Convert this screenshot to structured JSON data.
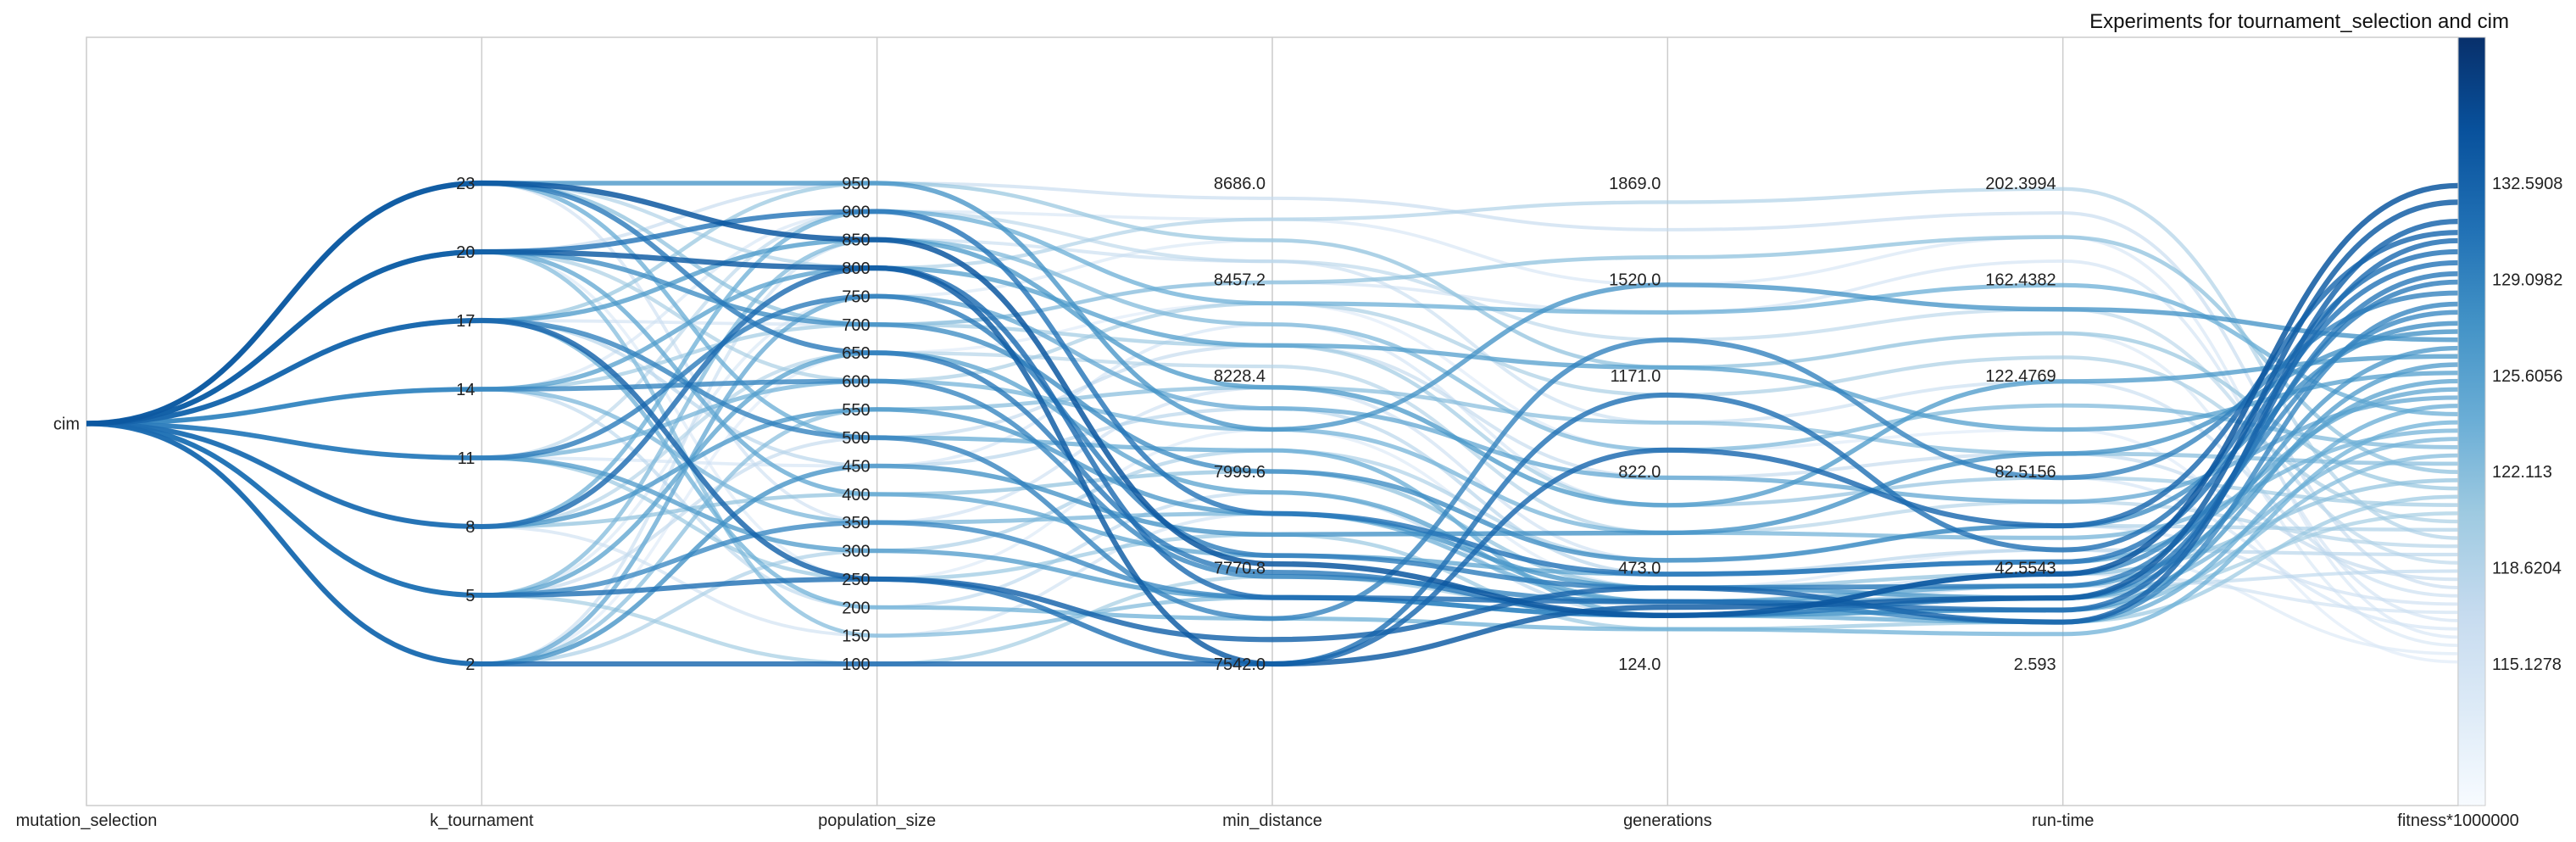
{
  "chart_data": {
    "type": "parallel-coordinates",
    "title": "Experiments for tournament_selection and cim",
    "line_style": "smooth curves",
    "grid": true,
    "colormap": "Blues",
    "colorbar_range": [
      111.6352,
      136.0834
    ],
    "axes": [
      {
        "name": "mutation_selection",
        "categorical": true,
        "ticks": [
          "cim"
        ]
      },
      {
        "name": "k_tournament",
        "range": [
          2,
          23
        ],
        "ticks": [
          "2",
          "5",
          "8",
          "11",
          "14",
          "17",
          "20",
          "23"
        ]
      },
      {
        "name": "population_size",
        "range": [
          100,
          950
        ],
        "ticks": [
          "100",
          "150",
          "200",
          "250",
          "300",
          "350",
          "400",
          "450",
          "500",
          "550",
          "600",
          "650",
          "700",
          "750",
          "800",
          "850",
          "900",
          "950"
        ]
      },
      {
        "name": "min_distance",
        "range": [
          7542.0,
          8686.0
        ],
        "ticks": [
          "7542.0",
          "7770.8",
          "7999.6",
          "8228.4",
          "8457.2",
          "8686.0"
        ]
      },
      {
        "name": "generations",
        "range": [
          124.0,
          1869.0
        ],
        "ticks": [
          "124.0",
          "473.0",
          "822.0",
          "1171.0",
          "1520.0",
          "1869.0"
        ]
      },
      {
        "name": "run-time",
        "range": [
          2.593,
          202.3994
        ],
        "ticks": [
          "2.593",
          "42.5543",
          "82.5156",
          "122.4769",
          "162.4382",
          "202.3994"
        ]
      },
      {
        "name": "fitness*1000000",
        "range": [
          115.1278,
          132.5908
        ],
        "ticks": [
          "115.1278",
          "118.6204",
          "122.113",
          "125.6056",
          "129.0982",
          "132.5908"
        ]
      }
    ],
    "series": [
      {
        "values": [
          "cim",
          23,
          850,
          7780,
          300,
          40,
          132.5
        ]
      },
      {
        "values": [
          "cim",
          20,
          800,
          7542,
          330,
          30,
          131.9
        ]
      },
      {
        "values": [
          "cim",
          17,
          250,
          7600,
          400,
          20,
          131.2
        ]
      },
      {
        "values": [
          "cim",
          2,
          100,
          7542,
          900,
          60,
          130.8
        ]
      },
      {
        "values": [
          "cim",
          8,
          800,
          7700,
          350,
          25,
          130.5
        ]
      },
      {
        "values": [
          "cim",
          5,
          250,
          7542,
          1100,
          50,
          130.1
        ]
      },
      {
        "values": [
          "cim",
          20,
          900,
          7900,
          450,
          45,
          129.7
        ]
      },
      {
        "values": [
          "cim",
          23,
          650,
          7760,
          300,
          30,
          129.3
        ]
      },
      {
        "values": [
          "cim",
          11,
          750,
          7800,
          400,
          35,
          129.0
        ]
      },
      {
        "values": [
          "cim",
          17,
          500,
          7650,
          1300,
          80,
          128.6
        ]
      },
      {
        "values": [
          "cim",
          14,
          600,
          7750,
          350,
          20,
          128.2
        ]
      },
      {
        "values": [
          "cim",
          5,
          350,
          7700,
          300,
          40,
          127.9
        ]
      },
      {
        "values": [
          "cim",
          20,
          700,
          8000,
          500,
          60,
          127.5
        ]
      },
      {
        "values": [
          "cim",
          2,
          450,
          7850,
          600,
          90,
          127.2
        ]
      },
      {
        "values": [
          "cim",
          23,
          950,
          8100,
          1500,
          150,
          126.9
        ]
      },
      {
        "values": [
          "cim",
          8,
          550,
          7900,
          400,
          30,
          126.6
        ]
      },
      {
        "values": [
          "cim",
          17,
          850,
          8200,
          700,
          120,
          126.3
        ]
      },
      {
        "values": [
          "cim",
          11,
          300,
          7700,
          300,
          25,
          126.0
        ]
      },
      {
        "values": [
          "cim",
          14,
          800,
          8300,
          1200,
          100,
          125.7
        ]
      },
      {
        "values": [
          "cim",
          5,
          650,
          7950,
          350,
          35,
          125.4
        ]
      },
      {
        "values": [
          "cim",
          20,
          400,
          7800,
          450,
          45,
          125.1
        ]
      },
      {
        "values": [
          "cim",
          2,
          750,
          8150,
          800,
          70,
          124.8
        ]
      },
      {
        "values": [
          "cim",
          23,
          500,
          8050,
          300,
          20,
          124.5
        ]
      },
      {
        "values": [
          "cim",
          8,
          900,
          8400,
          1400,
          160,
          124.2
        ]
      },
      {
        "values": [
          "cim",
          17,
          200,
          7650,
          250,
          15,
          123.9
        ]
      },
      {
        "values": [
          "cim",
          11,
          600,
          8100,
          600,
          55,
          123.6
        ]
      },
      {
        "values": [
          "cim",
          14,
          350,
          7900,
          350,
          30,
          123.3
        ]
      },
      {
        "values": [
          "cim",
          5,
          850,
          8350,
          900,
          110,
          123.0
        ]
      },
      {
        "values": [
          "cim",
          20,
          150,
          7700,
          300,
          25,
          122.7
        ]
      },
      {
        "values": [
          "cim",
          2,
          550,
          8200,
          1000,
          90,
          122.4
        ]
      },
      {
        "values": [
          "cim",
          23,
          700,
          8450,
          1600,
          180,
          122.1
        ]
      },
      {
        "values": [
          "cim",
          8,
          400,
          8000,
          400,
          40,
          121.8
        ]
      },
      {
        "values": [
          "cim",
          17,
          950,
          8550,
          1200,
          140,
          121.5
        ]
      },
      {
        "values": [
          "cim",
          11,
          250,
          7850,
          250,
          20,
          121.2
        ]
      },
      {
        "values": [
          "cim",
          14,
          700,
          8300,
          700,
          80,
          120.9
        ]
      },
      {
        "values": [
          "cim",
          5,
          100,
          7750,
          300,
          30,
          120.6
        ]
      },
      {
        "values": [
          "cim",
          20,
          600,
          8400,
          1100,
          130,
          120.3
        ]
      },
      {
        "values": [
          "cim",
          2,
          300,
          8050,
          500,
          60,
          120.0
        ]
      },
      {
        "values": [
          "cim",
          23,
          800,
          8600,
          1800,
          200,
          119.7
        ]
      },
      {
        "values": [
          "cim",
          8,
          650,
          8250,
          600,
          70,
          119.4
        ]
      },
      {
        "values": [
          "cim",
          17,
          450,
          8150,
          450,
          50,
          119.1
        ]
      },
      {
        "values": [
          "cim",
          11,
          900,
          8500,
          1300,
          150,
          118.8
        ]
      },
      {
        "values": [
          "cim",
          14,
          200,
          7950,
          300,
          35,
          118.5
        ]
      },
      {
        "values": [
          "cim",
          5,
          500,
          8300,
          800,
          90,
          118.2
        ]
      },
      {
        "values": [
          "cim",
          20,
          950,
          8650,
          1700,
          190,
          117.9
        ]
      },
      {
        "values": [
          "cim",
          2,
          850,
          8500,
          1000,
          120,
          117.6
        ]
      },
      {
        "values": [
          "cim",
          23,
          350,
          8200,
          500,
          60,
          117.3
        ]
      },
      {
        "values": [
          "cim",
          8,
          150,
          7900,
          350,
          40,
          117.0
        ]
      },
      {
        "values": [
          "cim",
          17,
          700,
          8450,
          1400,
          170,
          116.7
        ]
      },
      {
        "values": [
          "cim",
          11,
          450,
          8350,
          700,
          80,
          116.4
        ]
      },
      {
        "values": [
          "cim",
          14,
          900,
          8600,
          1500,
          180,
          116.1
        ]
      },
      {
        "values": [
          "cim",
          5,
          750,
          8550,
          1200,
          140,
          115.8
        ]
      },
      {
        "values": [
          "cim",
          20,
          250,
          8100,
          400,
          50,
          115.5
        ]
      },
      {
        "values": [
          "cim",
          2,
          650,
          8400,
          900,
          100,
          115.2
        ]
      }
    ]
  }
}
